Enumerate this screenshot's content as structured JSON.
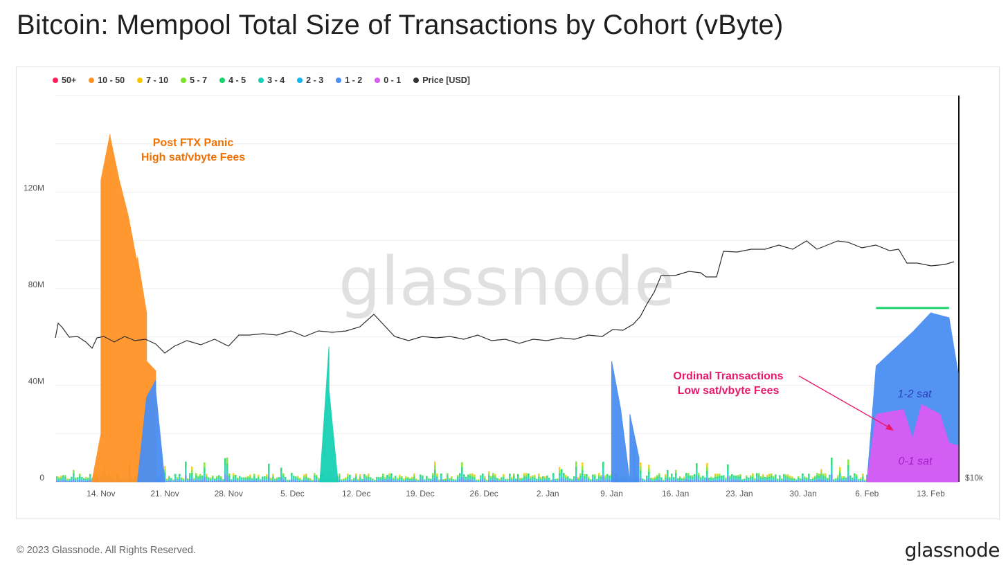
{
  "title": "Bitcoin: Mempool Total Size of Transactions by Cohort (vByte)",
  "footer": {
    "copyright": "© 2023 Glassnode. All Rights Reserved.",
    "logo": "glassnode"
  },
  "watermark": "glassnode",
  "chart_data": {
    "type": "area",
    "stacked": true,
    "legend_position": "top-left",
    "grid": true,
    "legend": [
      {
        "label": "50+",
        "color": "#ff1f5a"
      },
      {
        "label": "10 - 50",
        "color": "#ff9326"
      },
      {
        "label": "7 - 10",
        "color": "#f7c800"
      },
      {
        "label": "5 - 7",
        "color": "#7be22a"
      },
      {
        "label": "4 - 5",
        "color": "#19d36b"
      },
      {
        "label": "3 - 4",
        "color": "#18d1b4"
      },
      {
        "label": "2 - 3",
        "color": "#14b4f0"
      },
      {
        "label": "1 - 2",
        "color": "#4a8ef2"
      },
      {
        "label": "0 - 1",
        "color": "#d95cf5"
      },
      {
        "label": "Price [USD]",
        "color": "#333333"
      }
    ],
    "x_ticks": [
      "14. Nov",
      "21. Nov",
      "28. Nov",
      "5. Dec",
      "12. Dec",
      "19. Dec",
      "26. Dec",
      "2. Jan",
      "9. Jan",
      "16. Jan",
      "23. Jan",
      "30. Jan",
      "6. Feb",
      "13. Feb"
    ],
    "x_range": [
      "2022-11-09",
      "2023-02-16"
    ],
    "y_left": {
      "ticks": [
        "0",
        "40M",
        "80M",
        "120M"
      ],
      "values": [
        0,
        40000000,
        80000000,
        120000000
      ],
      "range": [
        0,
        160000000
      ]
    },
    "y_right": {
      "ticks": [
        "$10k"
      ]
    },
    "series": [
      {
        "name": "10 - 50",
        "color": "#ff9326",
        "points": [
          [
            "2022-11-13",
            0
          ],
          [
            "2022-11-14",
            20000000
          ],
          [
            "2022-11-14",
            125000000
          ],
          [
            "2022-11-15",
            144000000
          ],
          [
            "2022-11-15",
            143000000
          ],
          [
            "2022-11-16",
            125000000
          ],
          [
            "2022-11-17",
            110000000
          ],
          [
            "2022-11-18",
            90000000
          ],
          [
            "2022-11-18",
            93000000
          ],
          [
            "2022-11-19",
            70000000
          ],
          [
            "2022-11-19",
            50000000
          ],
          [
            "2022-11-20",
            46000000
          ],
          [
            "2022-11-20",
            5000000
          ]
        ]
      },
      {
        "name": "1 - 2",
        "color": "#4a8ef2",
        "points": [
          [
            "2022-11-18",
            0
          ],
          [
            "2022-11-19",
            35000000
          ],
          [
            "2022-11-20",
            42000000
          ],
          [
            "2022-11-20",
            38000000
          ],
          [
            "2022-11-21",
            0
          ]
        ]
      },
      {
        "name": "3 - 4",
        "color": "#18d1b4",
        "points": [
          [
            "2022-12-08",
            0
          ],
          [
            "2022-12-09",
            56000000
          ],
          [
            "2022-12-09",
            38000000
          ],
          [
            "2022-12-10",
            0
          ]
        ]
      },
      {
        "name": "1 - 2",
        "color": "#4a8ef2",
        "points": [
          [
            "2023-01-09",
            0
          ],
          [
            "2023-01-09",
            50000000
          ],
          [
            "2023-01-10",
            30000000
          ],
          [
            "2023-01-11",
            0
          ],
          [
            "2023-01-11",
            28000000
          ],
          [
            "2023-01-12",
            10000000
          ],
          [
            "2023-01-12",
            0
          ]
        ]
      },
      {
        "name": "1 - 2",
        "color": "#4a8ef2",
        "points": [
          [
            "2023-02-06",
            0
          ],
          [
            "2023-02-07",
            48000000
          ],
          [
            "2023-02-09",
            55000000
          ],
          [
            "2023-02-11",
            62000000
          ],
          [
            "2023-02-13",
            70000000
          ],
          [
            "2023-02-15",
            68000000
          ],
          [
            "2023-02-16",
            45000000
          ]
        ]
      },
      {
        "name": "0 - 1",
        "color": "#d95cf5",
        "points": [
          [
            "2023-02-06",
            0
          ],
          [
            "2023-02-07",
            28000000
          ],
          [
            "2023-02-10",
            30000000
          ],
          [
            "2023-02-11",
            18000000
          ],
          [
            "2023-02-12",
            32000000
          ],
          [
            "2023-02-14",
            28000000
          ],
          [
            "2023-02-15",
            16000000
          ],
          [
            "2023-02-16",
            15000000
          ]
        ]
      }
    ],
    "annotations": [
      {
        "lines": [
          "Post FTX Panic",
          "High sat/vbyte Fees"
        ],
        "color": "#f07000"
      },
      {
        "lines": [
          "Ordinal Transactions",
          "Low sat/vbyte Fees"
        ],
        "color": "#e8186a"
      },
      {
        "lines": [
          "1-2 sat"
        ],
        "color": "#2b3fb8"
      },
      {
        "lines": [
          "0-1 sat"
        ],
        "color": "#a51ec8"
      }
    ]
  }
}
